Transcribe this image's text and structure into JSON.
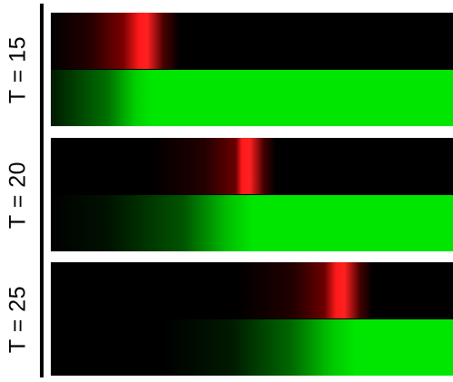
{
  "labels": {
    "t15": "T = 15",
    "t20": "T = 20",
    "t25": "T = 25"
  },
  "colors": {
    "red": "#ff1a1a",
    "green": "#00e600",
    "background": "#000000"
  }
}
